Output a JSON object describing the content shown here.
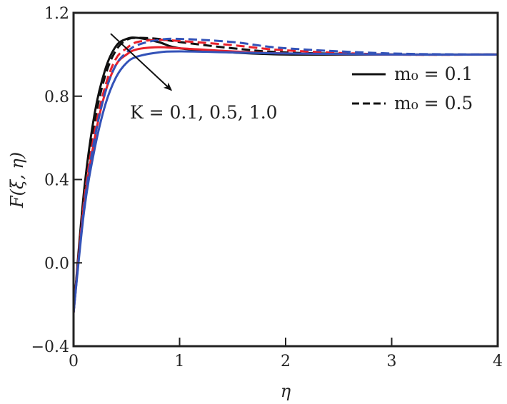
{
  "chart_data": {
    "type": "line",
    "title": "",
    "xlabel": "η",
    "ylabel": "F(ξ, η)",
    "xlim": [
      0,
      4
    ],
    "ylim": [
      -0.4,
      1.2
    ],
    "xticks": [
      "0",
      "1",
      "2",
      "3",
      "4"
    ],
    "yticks": [
      "−0.4",
      "0.0",
      "0.4",
      "0.8",
      "1.2"
    ],
    "xtick_values": [
      0,
      1,
      2,
      3,
      4
    ],
    "ytick_values": [
      -0.4,
      0.0,
      0.4,
      0.8,
      1.2
    ],
    "grid": false,
    "legend_position": "top-right",
    "legend": [
      {
        "label": "m₀ = 0.1",
        "style": "solid"
      },
      {
        "label": "m₀ = 0.5",
        "style": "dashed"
      }
    ],
    "annotation": {
      "text": "K = 0.1, 0.5, 1.0",
      "arrow_from": [
        0.35,
        1.1
      ],
      "arrow_to": [
        0.92,
        0.83
      ]
    },
    "x": [
      0,
      0.1,
      0.2,
      0.3,
      0.4,
      0.5,
      0.6,
      0.8,
      1.0,
      1.5,
      2,
      3,
      4
    ],
    "series": [
      {
        "name": "K=0.1, m0=0.1",
        "color": "#111111",
        "style": "solid",
        "values": [
          -0.24,
          0.35,
          0.72,
          0.93,
          1.04,
          1.075,
          1.08,
          1.06,
          1.03,
          1.01,
          1.0,
          1.0,
          1.0
        ]
      },
      {
        "name": "K=0.1, m0=0.5",
        "color": "#111111",
        "style": "dashed",
        "values": [
          -0.24,
          0.32,
          0.68,
          0.9,
          1.02,
          1.07,
          1.08,
          1.075,
          1.06,
          1.03,
          1.01,
          1.0,
          1.0
        ]
      },
      {
        "name": "K=0.5, m0=0.1",
        "color": "#e8202a",
        "style": "solid",
        "values": [
          -0.24,
          0.28,
          0.6,
          0.82,
          0.95,
          1.0,
          1.025,
          1.035,
          1.03,
          1.015,
          1.005,
          1.0,
          1.0
        ]
      },
      {
        "name": "K=0.5, m0=0.5",
        "color": "#e8202a",
        "style": "dashed",
        "values": [
          -0.24,
          0.3,
          0.63,
          0.85,
          0.98,
          1.03,
          1.06,
          1.07,
          1.065,
          1.045,
          1.02,
          1.0,
          1.0
        ]
      },
      {
        "name": "K=1.0, m0=0.1",
        "color": "#3352b8",
        "style": "solid",
        "values": [
          -0.24,
          0.25,
          0.55,
          0.76,
          0.89,
          0.96,
          0.99,
          1.01,
          1.015,
          1.01,
          1.005,
          1.0,
          1.0
        ]
      },
      {
        "name": "K=1.0, m0=0.5",
        "color": "#3352b8",
        "style": "dashed",
        "values": [
          -0.24,
          0.27,
          0.6,
          0.82,
          0.95,
          1.01,
          1.045,
          1.07,
          1.075,
          1.06,
          1.03,
          1.005,
          1.0
        ]
      }
    ]
  }
}
